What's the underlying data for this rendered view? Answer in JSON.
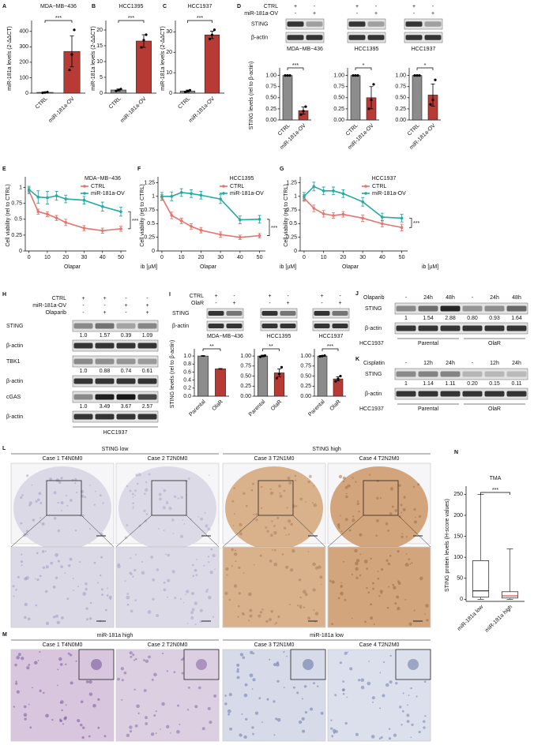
{
  "chart_data": [
    {
      "type": "bar",
      "panel": "A",
      "title": "MDA−MB−436",
      "ylabel": "miR-181a levels (2-ΔΔCT)",
      "categories": [
        "CTRL",
        "miR-181a-OV"
      ],
      "values": [
        5,
        270
      ],
      "errors": [
        3,
        100
      ],
      "points": [
        [
          2,
          4,
          7
        ],
        [
          150,
          250,
          410
        ]
      ],
      "colors": [
        "#8c8c8c",
        "#b83a35"
      ],
      "significance": "***",
      "ylim": [
        0,
        450
      ],
      "yticks": [
        0,
        100,
        200,
        300,
        400
      ]
    },
    {
      "type": "bar",
      "panel": "B",
      "title": "HCC1395",
      "ylabel": "miR-181a levels (2-ΔΔCT)",
      "categories": [
        "CTRL",
        "miR-181a-OV"
      ],
      "values": [
        1,
        16.5
      ],
      "errors": [
        0.3,
        2
      ],
      "points": [
        [
          0.7,
          1,
          1.3
        ],
        [
          14.5,
          16.8,
          18.5
        ]
      ],
      "colors": [
        "#8c8c8c",
        "#b83a35"
      ],
      "significance": "***",
      "ylim": [
        0,
        22
      ],
      "yticks": [
        0,
        5,
        10,
        15,
        20
      ]
    },
    {
      "type": "bar",
      "panel": "C",
      "title": "HCC1937",
      "ylabel": "miR-181a levels (2-ΔΔCT)",
      "categories": [
        "CTRL",
        "miR-181a-OV"
      ],
      "values": [
        1,
        28.5
      ],
      "errors": [
        0.5,
        1.8
      ],
      "points": [
        [
          0.6,
          1,
          1.4
        ],
        [
          26.5,
          28.5,
          31
        ]
      ],
      "colors": [
        "#8c8c8c",
        "#b83a35"
      ],
      "significance": "***",
      "ylim": [
        0,
        34
      ],
      "yticks": [
        0,
        10,
        20,
        30
      ]
    },
    {
      "type": "bar",
      "ylabel": "STING levels (rel to β-actin)",
      "categories": [
        "CTRL",
        "miR-181a-OV"
      ],
      "values": [
        1,
        0.21
      ],
      "errors": [
        0,
        0.08
      ],
      "points": [
        [
          1,
          1,
          1
        ],
        [
          0.12,
          0.2,
          0.3
        ]
      ],
      "colors": [
        "#8c8c8c",
        "#b83a35"
      ],
      "significance": "***",
      "ylim": [
        0,
        1.1
      ],
      "yticks": [
        {
          "value": 0,
          "label": "0.00"
        },
        {
          "value": 0.25,
          "label": "0.25"
        },
        {
          "value": 0.5,
          "label": "0.50"
        },
        {
          "value": 0.75,
          "label": "0.75"
        },
        {
          "value": 1,
          "label": "1.00"
        }
      ]
    },
    {
      "type": "bar",
      "categories": [
        "CTRL",
        "miR-181a-OV"
      ],
      "values": [
        1,
        0.5
      ],
      "errors": [
        0,
        0.25
      ],
      "points": [
        [
          1,
          1,
          1
        ],
        [
          0.25,
          0.45,
          0.8
        ]
      ],
      "colors": [
        "#8c8c8c",
        "#b83a35"
      ],
      "significance": "*",
      "ylim": [
        0,
        1.1
      ],
      "yticks": [
        {
          "value": 0,
          "label": "0.00"
        },
        {
          "value": 0.25,
          "label": "0.25"
        },
        {
          "value": 0.5,
          "label": "0.50"
        },
        {
          "value": 0.75,
          "label": "0.75"
        },
        {
          "value": 1,
          "label": "1.00"
        }
      ]
    },
    {
      "type": "bar",
      "categories": [
        "CTRL",
        "miR-181a-OV"
      ],
      "values": [
        1,
        0.56
      ],
      "errors": [
        0,
        0.25
      ],
      "points": [
        [
          1,
          1,
          1
        ],
        [
          0.35,
          0.45,
          0.9
        ]
      ],
      "colors": [
        "#8c8c8c",
        "#b83a35"
      ],
      "significance": "*",
      "ylim": [
        0,
        1.1
      ],
      "yticks": [
        {
          "value": 0,
          "label": "0.00"
        },
        {
          "value": 0.25,
          "label": "0.25"
        },
        {
          "value": 0.5,
          "label": "0.50"
        },
        {
          "value": 0.75,
          "label": "0.75"
        },
        {
          "value": 1,
          "label": "1.00"
        }
      ]
    },
    {
      "type": "line",
      "panel": "E",
      "title": "MDA−MB−436",
      "ylabel": "Cell viability (rel to CTRL)",
      "xlabel": "Olapar",
      "annotations": [
        "ib [µM]"
      ],
      "x": [
        0,
        5,
        10,
        15,
        20,
        30,
        40,
        50
      ],
      "series": [
        {
          "name": "CTRL",
          "color": "#e8736c",
          "values": [
            0.95,
            0.62,
            0.58,
            0.52,
            0.45,
            0.36,
            0.32,
            0.35
          ],
          "errors": [
            0.05,
            0.04,
            0.04,
            0.04,
            0.05,
            0.04,
            0.04,
            0.04
          ]
        },
        {
          "name": "miR-181a-OV",
          "color": "#22aaa4",
          "values": [
            0.97,
            0.85,
            0.84,
            0.87,
            0.82,
            0.8,
            0.7,
            0.62
          ],
          "errors": [
            0.05,
            0.1,
            0.1,
            0.07,
            0.06,
            0.06,
            0.07,
            0.07
          ]
        }
      ],
      "significance": "***",
      "legend": "top-right",
      "xlim": [
        -2,
        53
      ],
      "xticks": [
        0,
        10,
        20,
        30,
        40,
        50
      ],
      "ylim": [
        0,
        1.12
      ],
      "yticks": [
        0,
        0.25,
        0.5,
        0.75,
        1
      ]
    },
    {
      "type": "line",
      "panel": "F",
      "title": "HCC1395",
      "ylabel": "Cell viability (rel to CTRL)",
      "xlabel": "Olapar",
      "annotations": [
        "ib [µM]"
      ],
      "x": [
        0,
        5,
        10,
        15,
        20,
        30,
        40,
        50
      ],
      "series": [
        {
          "name": "CTRL",
          "color": "#e8736c",
          "values": [
            0.98,
            0.65,
            0.55,
            0.45,
            0.38,
            0.3,
            0.25,
            0.28
          ],
          "errors": [
            0.05,
            0.06,
            0.05,
            0.05,
            0.05,
            0.05,
            0.04,
            0.04
          ]
        },
        {
          "name": "miR-181a-OV",
          "color": "#22aaa4",
          "values": [
            1,
            1,
            1.07,
            1.05,
            1.02,
            0.95,
            0.57,
            0.58
          ],
          "errors": [
            0.07,
            0.08,
            0.07,
            0.07,
            0.07,
            0.08,
            0.07,
            0.07
          ]
        }
      ],
      "significance": "***",
      "legend": "top-right",
      "xlim": [
        -2,
        53
      ],
      "xticks": [
        0,
        10,
        20,
        30,
        40,
        50
      ],
      "ylim": [
        0,
        1.3
      ],
      "yticks": [
        0,
        0.25,
        0.5,
        0.75,
        1,
        1.25
      ]
    },
    {
      "type": "line",
      "panel": "G",
      "title": "HCC1937",
      "ylabel": "Cell viability (rel to CTRL)",
      "xlabel": "Olapar",
      "annotations": [
        "ib [µM]"
      ],
      "x": [
        0,
        5,
        10,
        15,
        20,
        30,
        40,
        50
      ],
      "series": [
        {
          "name": "CTRL",
          "color": "#e8736c",
          "values": [
            0.97,
            0.78,
            0.68,
            0.65,
            0.67,
            0.6,
            0.5,
            0.43
          ],
          "errors": [
            0.06,
            0.06,
            0.06,
            0.05,
            0.05,
            0.06,
            0.06,
            0.06
          ]
        },
        {
          "name": "miR-181a-OV",
          "color": "#22aaa4",
          "values": [
            1,
            1.18,
            1.1,
            1.1,
            1.05,
            0.9,
            0.62,
            0.6
          ],
          "errors": [
            0.07,
            0.08,
            0.07,
            0.07,
            0.07,
            0.08,
            0.07,
            0.07
          ]
        }
      ],
      "significance": "***",
      "legend": "top-right",
      "xlim": [
        -2,
        53
      ],
      "xticks": [
        0,
        10,
        20,
        30,
        40,
        50
      ],
      "ylim": [
        0,
        1.3
      ],
      "yticks": [
        0,
        0.25,
        0.5,
        0.75,
        1,
        1.25
      ]
    },
    {
      "type": "bar",
      "ylabel": "STING levels (rel to β-actin)",
      "categories": [
        "Parental",
        "OlaR"
      ],
      "values": [
        1,
        0.68
      ],
      "errors": [
        0.01,
        0.01
      ],
      "colors": [
        "#8c8c8c",
        "#b83a35"
      ],
      "significance": "**",
      "ylim": [
        0,
        1.1
      ],
      "yticks": [
        {
          "value": 0,
          "label": "0.0"
        },
        {
          "value": 0.2,
          "label": "0.2"
        },
        {
          "value": 0.4,
          "label": "0.4"
        },
        {
          "value": 0.6,
          "label": "0.6"
        },
        {
          "value": 0.8,
          "label": "0.8"
        },
        {
          "value": 1,
          "label": "1.0"
        }
      ]
    },
    {
      "type": "bar",
      "categories": [
        "Parental",
        "OlaR"
      ],
      "values": [
        1,
        0.58
      ],
      "errors": [
        0.02,
        0.1
      ],
      "points": [
        [
          0.98,
          1,
          1.01
        ],
        [
          0.45,
          0.55,
          0.72
        ]
      ],
      "colors": [
        "#8c8c8c",
        "#b83a35"
      ],
      "significance": "**",
      "ylim": [
        0,
        1.1
      ],
      "yticks": [
        {
          "value": 0,
          "label": "0.00"
        },
        {
          "value": 0.25,
          "label": "0.25"
        },
        {
          "value": 0.5,
          "label": "0.50"
        },
        {
          "value": 0.75,
          "label": "0.75"
        },
        {
          "value": 1,
          "label": "1.00"
        }
      ]
    },
    {
      "type": "bar",
      "categories": [
        "Parental",
        "OlaR"
      ],
      "values": [
        1,
        0.43
      ],
      "errors": [
        0.01,
        0.05
      ],
      "points": [
        [
          0.99,
          1,
          1.01
        ],
        [
          0.37,
          0.43,
          0.5
        ]
      ],
      "colors": [
        "#8c8c8c",
        "#b83a35"
      ],
      "significance": "***",
      "ylim": [
        0,
        1.1
      ],
      "yticks": [
        {
          "value": 0,
          "label": "0.00"
        },
        {
          "value": 0.25,
          "label": "0.25"
        },
        {
          "value": 0.5,
          "label": "0.50"
        },
        {
          "value": 0.75,
          "label": "0.75"
        },
        {
          "value": 1,
          "label": "1.00"
        }
      ]
    },
    {
      "type": "box",
      "panel": "N",
      "title": "TMA",
      "ylabel": "STING protein levels (H-score values)",
      "categories": [
        "miR-181a low",
        "miR-181a high"
      ],
      "boxes": [
        {
          "min": 0,
          "q1": 5,
          "median": 20,
          "q3": 92,
          "max": 250
        },
        {
          "min": 0,
          "q1": 3,
          "median": 8,
          "q3": 18,
          "max": 120
        }
      ],
      "colors": [
        "#222222",
        "#e03030"
      ],
      "significance": "***",
      "ylim": [
        -5,
        262
      ],
      "yticks": [
        0,
        50,
        100,
        150,
        200,
        250
      ]
    }
  ],
  "blots": {
    "D": {
      "panel": "D",
      "conditions": [
        {
          "name": "CTRL",
          "marks": [
            "+",
            "-",
            "+",
            "-",
            "+",
            "-"
          ]
        },
        {
          "name": "miR-181a-OV",
          "marks": [
            "-",
            "+",
            "-",
            "+",
            "-",
            "+"
          ]
        }
      ],
      "rows": [
        "STING",
        "β-actin"
      ],
      "groups": [
        "MDA−MB−436",
        "HCC1395",
        "HCC1937"
      ]
    },
    "H": {
      "panel": "H",
      "conditions": [
        {
          "name": "CTRL",
          "marks": [
            "+",
            "+",
            "-",
            "-"
          ]
        },
        {
          "name": "miR-181a-OV",
          "marks": [
            "-",
            "-",
            "+",
            "+"
          ]
        },
        {
          "name": "Olaparib",
          "marks": [
            "-",
            "+",
            "-",
            "+"
          ]
        }
      ],
      "rows": [
        {
          "name": "STING",
          "quant": [
            "1.0",
            "1.57",
            "0.39",
            "1.09"
          ]
        },
        {
          "name": "β-actin"
        },
        {
          "name": "TBK1",
          "quant": [
            "1.0",
            "0.88",
            "0.74",
            "0.61"
          ]
        },
        {
          "name": "β-actin"
        },
        {
          "name": "cGAS",
          "quant": [
            "1.0",
            "3.49",
            "3.67",
            "2.57"
          ]
        },
        {
          "name": "β-actin"
        }
      ],
      "group": "HCC1937"
    },
    "I": {
      "panel": "I",
      "conditions": [
        {
          "name": "CTRL",
          "marks": [
            "+",
            "-",
            "+",
            "-",
            "+",
            "-"
          ]
        },
        {
          "name": "OlaR",
          "marks": [
            "-",
            "+",
            "-",
            "+",
            "-",
            "+"
          ]
        }
      ],
      "rows": [
        "STING",
        "β-actin"
      ],
      "groups": [
        "MDA−MB−436",
        "HCC1395",
        "HCC1937"
      ]
    },
    "J": {
      "panel": "J",
      "treatment": {
        "name": "Olaparib",
        "marks": [
          "-",
          "24h",
          "48h",
          "-",
          "24h",
          "48h"
        ]
      },
      "rows": [
        {
          "name": "STING",
          "quant": [
            "1",
            "1.54",
            "2.88",
            "0.80",
            "0.93",
            "1.64"
          ]
        },
        {
          "name": "β-actin"
        }
      ],
      "cell_line": "HCC1937",
      "groups": [
        "Parental",
        "OlaR"
      ]
    },
    "K": {
      "panel": "K",
      "treatment": {
        "name": "Cisplatin",
        "marks": [
          "-",
          "12h",
          "24h",
          "-",
          "12h",
          "24h"
        ]
      },
      "rows": [
        {
          "name": "STING",
          "quant": [
            "1",
            "1.14",
            "1.11",
            "0.20",
            "0.15",
            "0.11"
          ]
        },
        {
          "name": "β-actin"
        }
      ],
      "cell_line": "HCC1937",
      "groups": [
        "Parental",
        "OlaR"
      ]
    }
  },
  "images": {
    "L": {
      "panel": "L",
      "groups": [
        "STING low",
        "STING high"
      ],
      "cases": [
        "Case 1 T4N0M0",
        "Case 2 T2N0M0",
        "Case 3 T2N1M0",
        "Case 4 T2N2M0"
      ]
    },
    "M": {
      "panel": "M",
      "groups": [
        "miR-181a high",
        "miR-181a low"
      ],
      "cases": [
        "Case 1 T4N0M0",
        "Case 2 T2N0M0",
        "Case 3 T2N1M0",
        "Case 4 T2N2M0"
      ]
    }
  }
}
